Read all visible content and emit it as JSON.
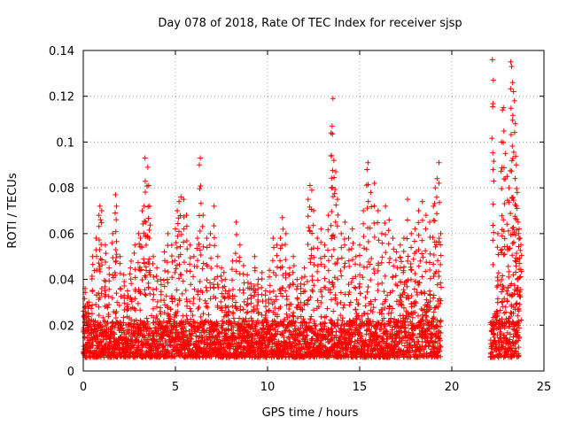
{
  "chart_data": {
    "type": "scatter",
    "title": "Day 078 of 2018, Rate Of TEC Index for receiver sjsp",
    "xlabel": "GPS time / hours",
    "ylabel": "ROTI / TECUs",
    "xlim": [
      0,
      25
    ],
    "ylim": [
      0,
      0.14
    ],
    "xticks": [
      0,
      5,
      10,
      15,
      20,
      25
    ],
    "yticks": [
      0,
      0.02,
      0.04,
      0.06,
      0.08,
      0.1,
      0.12,
      0.14
    ],
    "xtick_labels": [
      "0",
      "5",
      "10",
      "15",
      "20",
      "25"
    ],
    "ytick_labels": [
      "0",
      "0.02",
      "0.04",
      "0.06",
      "0.08",
      "0.1",
      "0.12",
      "0.14"
    ],
    "grid": true,
    "marker": "+",
    "color": "#ff0000",
    "series": [
      {
        "name": "ROTI",
        "note": "Dense observations every ~0.025 h from 0 to ~19.4 h and from ~22.1 to ~23.6 h; gap 19.4–22.1 h. Baseline ~0.008–0.02 TECU/min.",
        "points": [
          [
            0.1,
            0.036
          ],
          [
            0.15,
            0.024
          ],
          [
            0.3,
            0.03
          ],
          [
            0.5,
            0.05
          ],
          [
            0.7,
            0.058
          ],
          [
            0.85,
            0.068
          ],
          [
            0.9,
            0.072
          ],
          [
            1.0,
            0.07
          ],
          [
            1.2,
            0.055
          ],
          [
            1.4,
            0.045
          ],
          [
            1.6,
            0.06
          ],
          [
            1.75,
            0.077
          ],
          [
            1.8,
            0.072
          ],
          [
            2.0,
            0.05
          ],
          [
            2.2,
            0.042
          ],
          [
            2.4,
            0.035
          ],
          [
            2.6,
            0.048
          ],
          [
            2.8,
            0.055
          ],
          [
            3.0,
            0.06
          ],
          [
            3.1,
            0.058
          ],
          [
            3.2,
            0.07
          ],
          [
            3.3,
            0.072
          ],
          [
            3.35,
            0.093
          ],
          [
            3.4,
            0.065
          ],
          [
            3.5,
            0.089
          ],
          [
            3.55,
            0.081
          ],
          [
            3.6,
            0.072
          ],
          [
            3.8,
            0.05
          ],
          [
            4.0,
            0.045
          ],
          [
            4.2,
            0.04
          ],
          [
            4.4,
            0.052
          ],
          [
            4.6,
            0.06
          ],
          [
            4.8,
            0.055
          ],
          [
            5.0,
            0.062
          ],
          [
            5.1,
            0.07
          ],
          [
            5.2,
            0.074
          ],
          [
            5.3,
            0.076
          ],
          [
            5.45,
            0.075
          ],
          [
            5.6,
            0.068
          ],
          [
            5.8,
            0.055
          ],
          [
            6.0,
            0.05
          ],
          [
            6.2,
            0.058
          ],
          [
            6.3,
            0.09
          ],
          [
            6.35,
            0.093
          ],
          [
            6.5,
            0.068
          ],
          [
            6.7,
            0.058
          ],
          [
            6.9,
            0.06
          ],
          [
            7.1,
            0.072
          ],
          [
            7.3,
            0.05
          ],
          [
            7.5,
            0.045
          ],
          [
            7.7,
            0.04
          ],
          [
            7.9,
            0.035
          ],
          [
            8.1,
            0.048
          ],
          [
            8.3,
            0.065
          ],
          [
            8.5,
            0.055
          ],
          [
            8.7,
            0.046
          ],
          [
            8.9,
            0.042
          ],
          [
            9.1,
            0.038
          ],
          [
            9.3,
            0.05
          ],
          [
            9.5,
            0.04
          ],
          [
            9.7,
            0.043
          ],
          [
            9.9,
            0.035
          ],
          [
            10.1,
            0.044
          ],
          [
            10.3,
            0.058
          ],
          [
            10.5,
            0.055
          ],
          [
            10.7,
            0.058
          ],
          [
            10.8,
            0.067
          ],
          [
            11.0,
            0.06
          ],
          [
            11.2,
            0.045
          ],
          [
            11.4,
            0.05
          ],
          [
            11.6,
            0.04
          ],
          [
            11.8,
            0.038
          ],
          [
            12.0,
            0.045
          ],
          [
            12.2,
            0.075
          ],
          [
            12.3,
            0.081
          ],
          [
            12.4,
            0.079
          ],
          [
            12.5,
            0.07
          ],
          [
            12.7,
            0.058
          ],
          [
            12.9,
            0.062
          ],
          [
            13.1,
            0.055
          ],
          [
            13.3,
            0.068
          ],
          [
            13.45,
            0.104
          ],
          [
            13.5,
            0.107
          ],
          [
            13.55,
            0.119
          ],
          [
            13.6,
            0.092
          ],
          [
            13.7,
            0.087
          ],
          [
            13.8,
            0.075
          ],
          [
            14.0,
            0.06
          ],
          [
            14.2,
            0.065
          ],
          [
            14.4,
            0.058
          ],
          [
            14.6,
            0.062
          ],
          [
            14.8,
            0.05
          ],
          [
            15.0,
            0.055
          ],
          [
            15.2,
            0.07
          ],
          [
            15.4,
            0.088
          ],
          [
            15.45,
            0.091
          ],
          [
            15.6,
            0.078
          ],
          [
            15.8,
            0.082
          ],
          [
            16.0,
            0.07
          ],
          [
            16.2,
            0.06
          ],
          [
            16.4,
            0.072
          ],
          [
            16.6,
            0.066
          ],
          [
            16.8,
            0.058
          ],
          [
            17.0,
            0.052
          ],
          [
            17.2,
            0.055
          ],
          [
            17.4,
            0.058
          ],
          [
            17.6,
            0.075
          ],
          [
            17.8,
            0.06
          ],
          [
            18.0,
            0.062
          ],
          [
            18.2,
            0.07
          ],
          [
            18.4,
            0.074
          ],
          [
            18.6,
            0.068
          ],
          [
            18.8,
            0.065
          ],
          [
            19.0,
            0.072
          ],
          [
            19.1,
            0.08
          ],
          [
            19.2,
            0.084
          ],
          [
            19.3,
            0.091
          ],
          [
            19.4,
            0.06
          ],
          [
            22.2,
            0.136
          ],
          [
            22.25,
            0.127
          ],
          [
            22.5,
            0.06
          ],
          [
            22.7,
            0.1
          ],
          [
            22.75,
            0.114
          ],
          [
            22.8,
            0.115
          ],
          [
            22.9,
            0.095
          ],
          [
            23.0,
            0.085
          ],
          [
            23.1,
            0.08
          ],
          [
            23.2,
            0.135
          ],
          [
            23.25,
            0.133
          ],
          [
            23.3,
            0.126
          ],
          [
            23.35,
            0.122
          ],
          [
            23.4,
            0.118
          ],
          [
            23.45,
            0.108
          ],
          [
            23.5,
            0.09
          ],
          [
            23.55,
            0.078
          ],
          [
            23.6,
            0.065
          ],
          [
            23.65,
            0.062
          ],
          [
            23.7,
            0.058
          ],
          [
            23.75,
            0.055
          ]
        ]
      }
    ]
  }
}
